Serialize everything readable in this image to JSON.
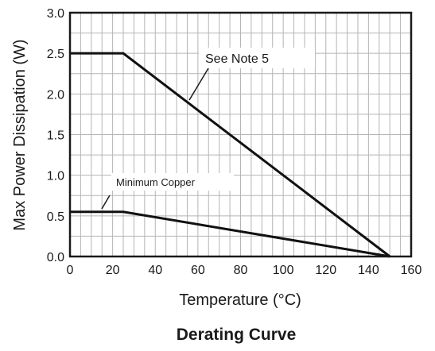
{
  "chart_data": {
    "type": "line",
    "title": "Derating Curve",
    "xlabel": "Temperature (°C)",
    "ylabel": "Max Power Dissipation (W)",
    "xlim": [
      0,
      160
    ],
    "ylim": [
      0,
      3.0
    ],
    "xticks": [
      0,
      20,
      40,
      60,
      80,
      100,
      120,
      140,
      160
    ],
    "yticks": [
      "0.0",
      "0.5",
      "1.0",
      "1.5",
      "2.0",
      "2.5",
      "3.0"
    ],
    "grid": true,
    "series": [
      {
        "x": [
          0,
          25,
          150
        ],
        "y": [
          2.5,
          2.5,
          0
        ]
      },
      {
        "x": [
          0,
          25,
          150
        ],
        "y": [
          0.55,
          0.55,
          0
        ]
      }
    ],
    "annotations": [
      {
        "text": "See Note 5",
        "series": 0
      },
      {
        "text": "Minimum Copper",
        "series": 1
      }
    ]
  }
}
